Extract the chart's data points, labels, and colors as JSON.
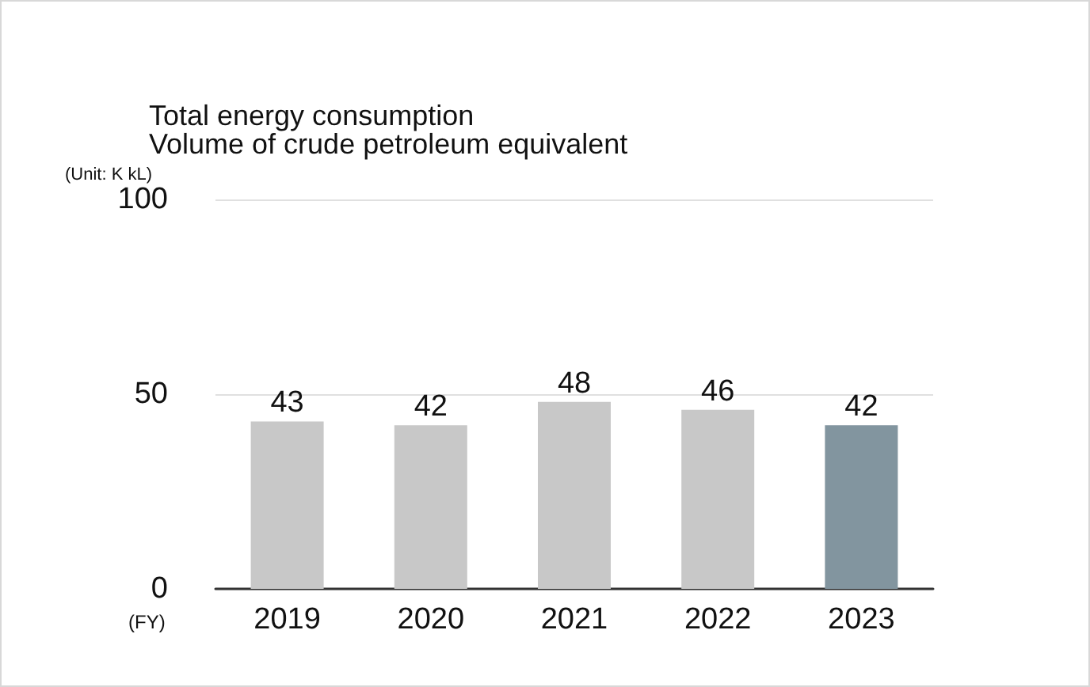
{
  "chart_data": {
    "type": "bar",
    "title": "Total energy consumption",
    "subtitle": "Volume of crude petroleum equivalent",
    "ylabel": "(Unit: K kL)",
    "xlabel": "(FY)",
    "categories": [
      "2019",
      "2020",
      "2021",
      "2022",
      "2023"
    ],
    "values": [
      43,
      42,
      48,
      46,
      42
    ],
    "colors": [
      "#c8c8c8",
      "#c8c8c8",
      "#c8c8c8",
      "#c8c8c8",
      "#82959f"
    ],
    "ylim": [
      0,
      100
    ],
    "yticks": [
      0,
      50,
      100
    ],
    "grid": "y",
    "data_labels": true
  }
}
